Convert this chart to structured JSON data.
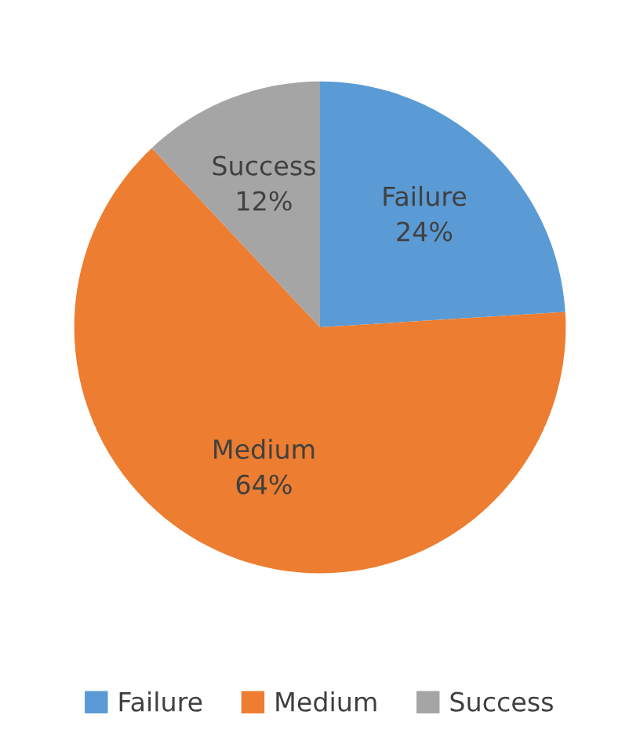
{
  "chart_data": {
    "type": "pie",
    "categories": [
      "Failure",
      "Medium",
      "Success"
    ],
    "values": [
      24,
      64,
      12
    ],
    "colors": [
      "#5b9bd5",
      "#ed7d31",
      "#a5a5a5"
    ],
    "value_labels": [
      "24%",
      "64%",
      "12%"
    ],
    "legend": "bottom"
  }
}
